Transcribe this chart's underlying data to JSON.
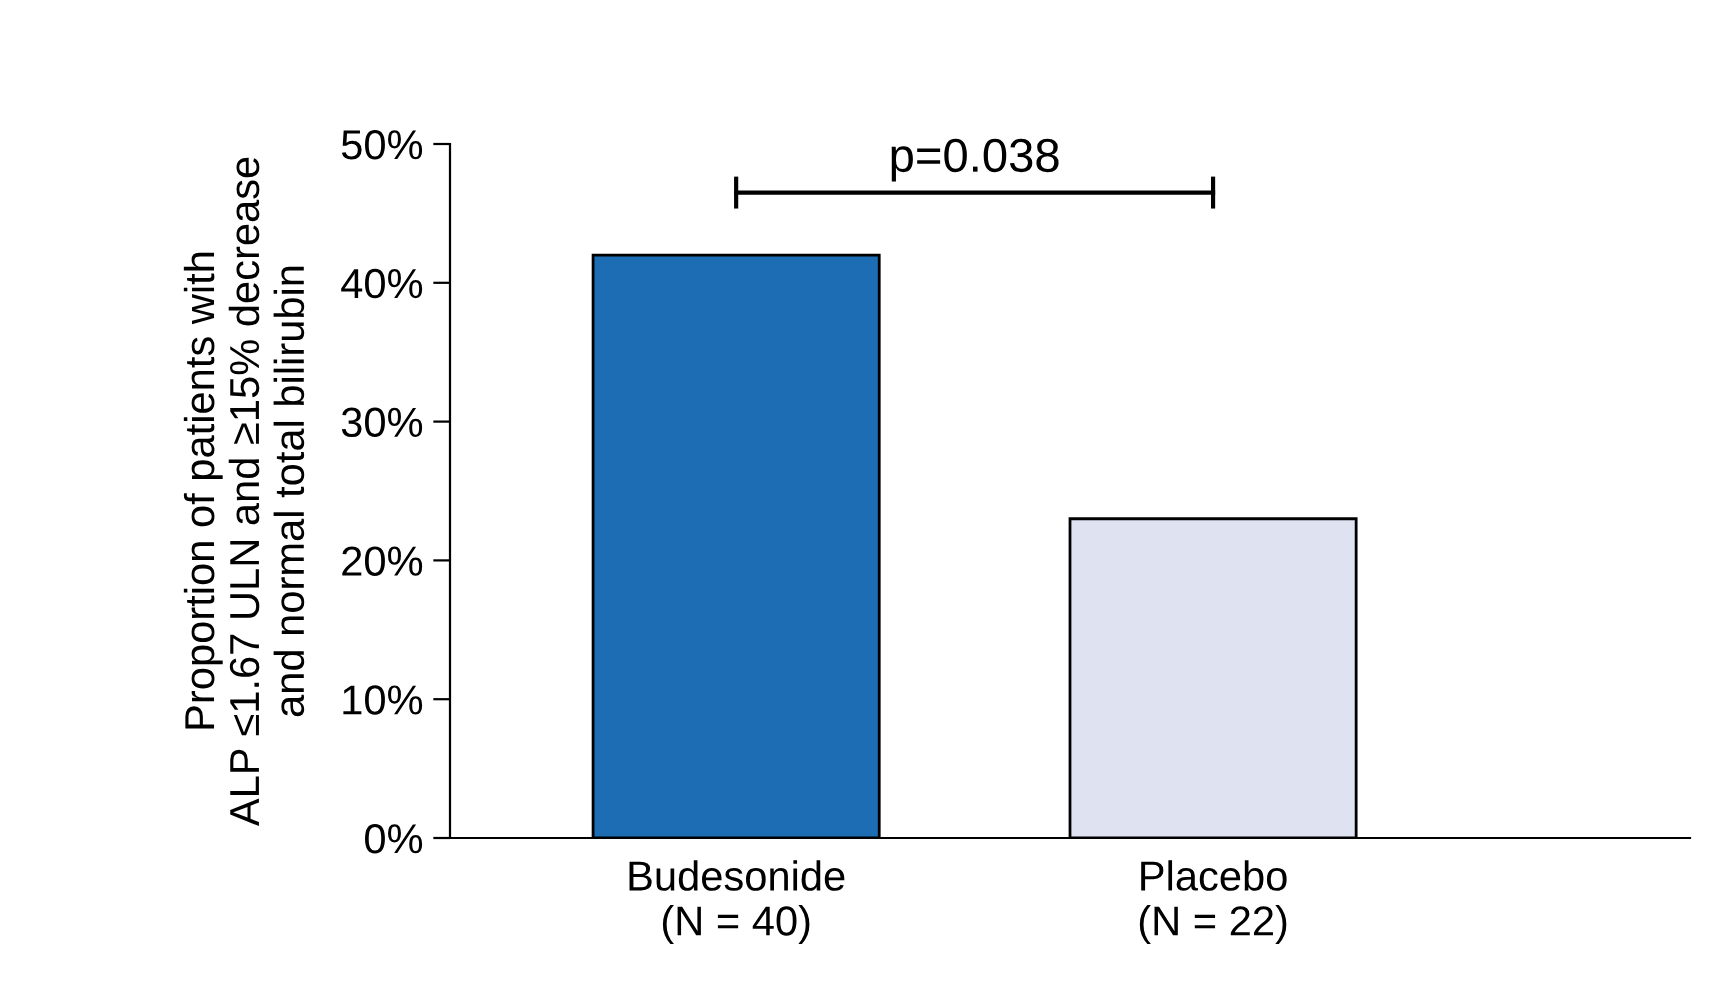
{
  "chart_data": {
    "type": "bar",
    "ylabel": "Proportion of patients with\nALP ≤1.67 ULN and ≥15% decrease\nand normal total bilirubin",
    "categories": [
      "Budesonide\n(N = 40)",
      "Placebo\n(N = 22)"
    ],
    "values": [
      42,
      23
    ],
    "colors": [
      "#1c6db3",
      "#dfe3f1"
    ],
    "ylim": [
      0,
      50
    ],
    "yticks": [
      {
        "value": 0,
        "label": "0%"
      },
      {
        "value": 10,
        "label": "10%"
      },
      {
        "value": 20,
        "label": "20%"
      },
      {
        "value": 30,
        "label": "30%"
      },
      {
        "value": 40,
        "label": "40%"
      },
      {
        "value": 50,
        "label": "50%"
      }
    ],
    "annotations": [
      "p=0.038"
    ],
    "grid": false,
    "legend": false
  }
}
